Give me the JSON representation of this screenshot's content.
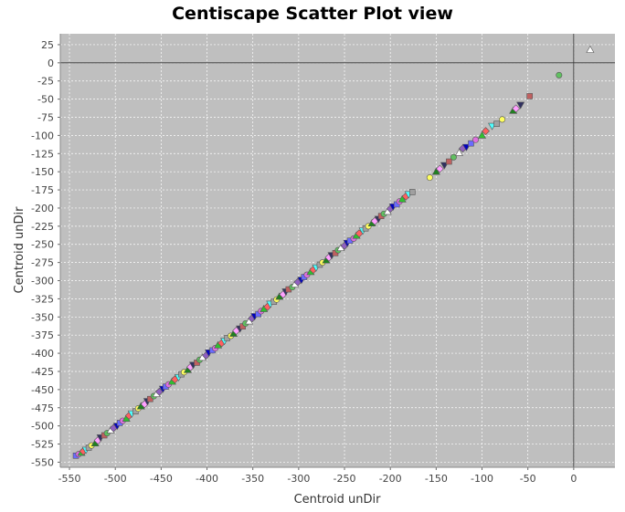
{
  "chart_data": {
    "type": "scatter",
    "title": "Centiscape Scatter Plot view",
    "xlabel": "Centroid unDir",
    "ylabel": "Centroid unDir",
    "xlim": [
      -560,
      45
    ],
    "ylim": [
      -557,
      40
    ],
    "xticks": [
      -550,
      -500,
      -450,
      -400,
      -350,
      -300,
      -250,
      -200,
      -150,
      -100,
      -50,
      0
    ],
    "yticks": [
      25,
      0,
      -25,
      -50,
      -75,
      -100,
      -125,
      -150,
      -175,
      -200,
      -225,
      -250,
      -275,
      -300,
      -325,
      -350,
      -375,
      -400,
      -425,
      -450,
      -475,
      -500,
      -525,
      -550
    ],
    "grid": true,
    "plot_background": "#bfbfbf",
    "zero_lines": true,
    "marker_colors": [
      "#6b6bff",
      "#e070e0",
      "#30c030",
      "#ff6060",
      "#50ffff",
      "#a0a0a0",
      "#ffff60",
      "#208020",
      "#ffa0ff",
      "#303060",
      "#c06060",
      "#60c060",
      "#ffffff",
      "#9060c0",
      "#0000c0"
    ],
    "points": [
      [
        -543,
        -541
      ],
      [
        -540,
        -539
      ],
      [
        -537,
        -537
      ],
      [
        -535,
        -535
      ],
      [
        -532,
        -533
      ],
      [
        -529,
        -530
      ],
      [
        -526,
        -527
      ],
      [
        -522,
        -524
      ],
      [
        -519,
        -520
      ],
      [
        -516,
        -516
      ],
      [
        -512,
        -513
      ],
      [
        -509,
        -510
      ],
      [
        -505,
        -506
      ],
      [
        -502,
        -503
      ],
      [
        -498,
        -500
      ],
      [
        -495,
        -496
      ],
      [
        -492,
        -493
      ],
      [
        -488,
        -490
      ],
      [
        -485,
        -486
      ],
      [
        -482,
        -483
      ],
      [
        -478,
        -480
      ],
      [
        -475,
        -476
      ],
      [
        -472,
        -473
      ],
      [
        -468,
        -470
      ],
      [
        -465,
        -466
      ],
      [
        -462,
        -463
      ],
      [
        -458,
        -459
      ],
      [
        -455,
        -456
      ],
      [
        -452,
        -453
      ],
      [
        -448,
        -449
      ],
      [
        -445,
        -446
      ],
      [
        -442,
        -443
      ],
      [
        -438,
        -439
      ],
      [
        -435,
        -436
      ],
      [
        -431,
        -433
      ],
      [
        -428,
        -429
      ],
      [
        -425,
        -426
      ],
      [
        -421,
        -423
      ],
      [
        -418,
        -419
      ],
      [
        -415,
        -416
      ],
      [
        -411,
        -413
      ],
      [
        -408,
        -409
      ],
      [
        -405,
        -406
      ],
      [
        -401,
        -403
      ],
      [
        -398,
        -399
      ],
      [
        -394,
        -396
      ],
      [
        -391,
        -393
      ],
      [
        -388,
        -389
      ],
      [
        -384,
        -386
      ],
      [
        -381,
        -383
      ],
      [
        -378,
        -379
      ],
      [
        -374,
        -376
      ],
      [
        -371,
        -373
      ],
      [
        -368,
        -369
      ],
      [
        -364,
        -366
      ],
      [
        -361,
        -363
      ],
      [
        -358,
        -359
      ],
      [
        -354,
        -356
      ],
      [
        -351,
        -352
      ],
      [
        -348,
        -349
      ],
      [
        -344,
        -346
      ],
      [
        -341,
        -342
      ],
      [
        -338,
        -339
      ],
      [
        -334,
        -336
      ],
      [
        -331,
        -332
      ],
      [
        -327,
        -329
      ],
      [
        -324,
        -326
      ],
      [
        -321,
        -322
      ],
      [
        -317,
        -319
      ],
      [
        -314,
        -315
      ],
      [
        -311,
        -312
      ],
      [
        -307,
        -309
      ],
      [
        -304,
        -305
      ],
      [
        -301,
        -302
      ],
      [
        -297,
        -299
      ],
      [
        -294,
        -295
      ],
      [
        -291,
        -292
      ],
      [
        -287,
        -288
      ],
      [
        -284,
        -285
      ],
      [
        -281,
        -282
      ],
      [
        -277,
        -278
      ],
      [
        -274,
        -275
      ],
      [
        -270,
        -272
      ],
      [
        -267,
        -268
      ],
      [
        -264,
        -265
      ],
      [
        -260,
        -262
      ],
      [
        -257,
        -258
      ],
      [
        -254,
        -255
      ],
      [
        -250,
        -252
      ],
      [
        -247,
        -248
      ],
      [
        -244,
        -245
      ],
      [
        -240,
        -242
      ],
      [
        -237,
        -238
      ],
      [
        -234,
        -235
      ],
      [
        -230,
        -231
      ],
      [
        -227,
        -228
      ],
      [
        -224,
        -225
      ],
      [
        -220,
        -221
      ],
      [
        -217,
        -218
      ],
      [
        -213,
        -215
      ],
      [
        -210,
        -211
      ],
      [
        -207,
        -208
      ],
      [
        -203,
        -205
      ],
      [
        -200,
        -201
      ],
      [
        -197,
        -198
      ],
      [
        -193,
        -195
      ],
      [
        -190,
        -191
      ],
      [
        -187,
        -188
      ],
      [
        -183,
        -184
      ],
      [
        -180,
        -181
      ],
      [
        -176,
        -178
      ],
      [
        -157,
        -158
      ],
      [
        -150,
        -150
      ],
      [
        -146,
        -146
      ],
      [
        -141,
        -141
      ],
      [
        -136,
        -136
      ],
      [
        -131,
        -130
      ],
      [
        -125,
        -124
      ],
      [
        -121,
        -118
      ],
      [
        -117,
        -116
      ],
      [
        -112,
        -111
      ],
      [
        -107,
        -106
      ],
      [
        -100,
        -100
      ],
      [
        -96,
        -94
      ],
      [
        -89,
        -87
      ],
      [
        -84,
        -84
      ],
      [
        -78,
        -78
      ],
      [
        -66,
        -66
      ],
      [
        -63,
        -63
      ],
      [
        -58,
        -58
      ],
      [
        -48,
        -46
      ],
      [
        -16,
        -17
      ],
      [
        18,
        18
      ]
    ]
  }
}
